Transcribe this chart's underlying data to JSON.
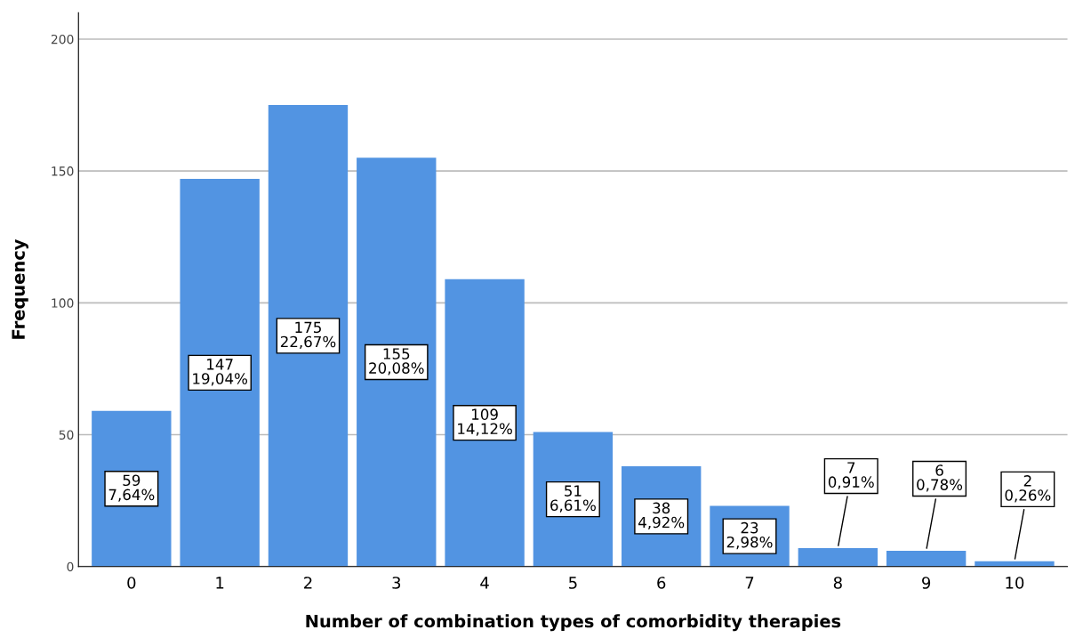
{
  "chart_data": {
    "type": "bar",
    "xlabel": "Number of combination types of comorbidity therapies",
    "ylabel": "Frequency",
    "categories": [
      "0",
      "1",
      "2",
      "3",
      "4",
      "5",
      "6",
      "7",
      "8",
      "9",
      "10"
    ],
    "values": [
      59,
      147,
      175,
      155,
      109,
      51,
      38,
      23,
      7,
      6,
      2
    ],
    "value_labels": [
      "59\n7,64%",
      "147\n19,04%",
      "175\n22,67%",
      "155\n20,08%",
      "109\n14,12%",
      "51\n6,61%",
      "38\n4,92%",
      "23\n2,98%",
      "7\n0,91%",
      "6\n0,78%",
      "2\n0,26%"
    ],
    "color": "#5294e2",
    "ylim": [
      0,
      210
    ],
    "yticks": [
      0,
      50,
      100,
      150,
      200
    ],
    "grid": "y",
    "legend": false
  }
}
